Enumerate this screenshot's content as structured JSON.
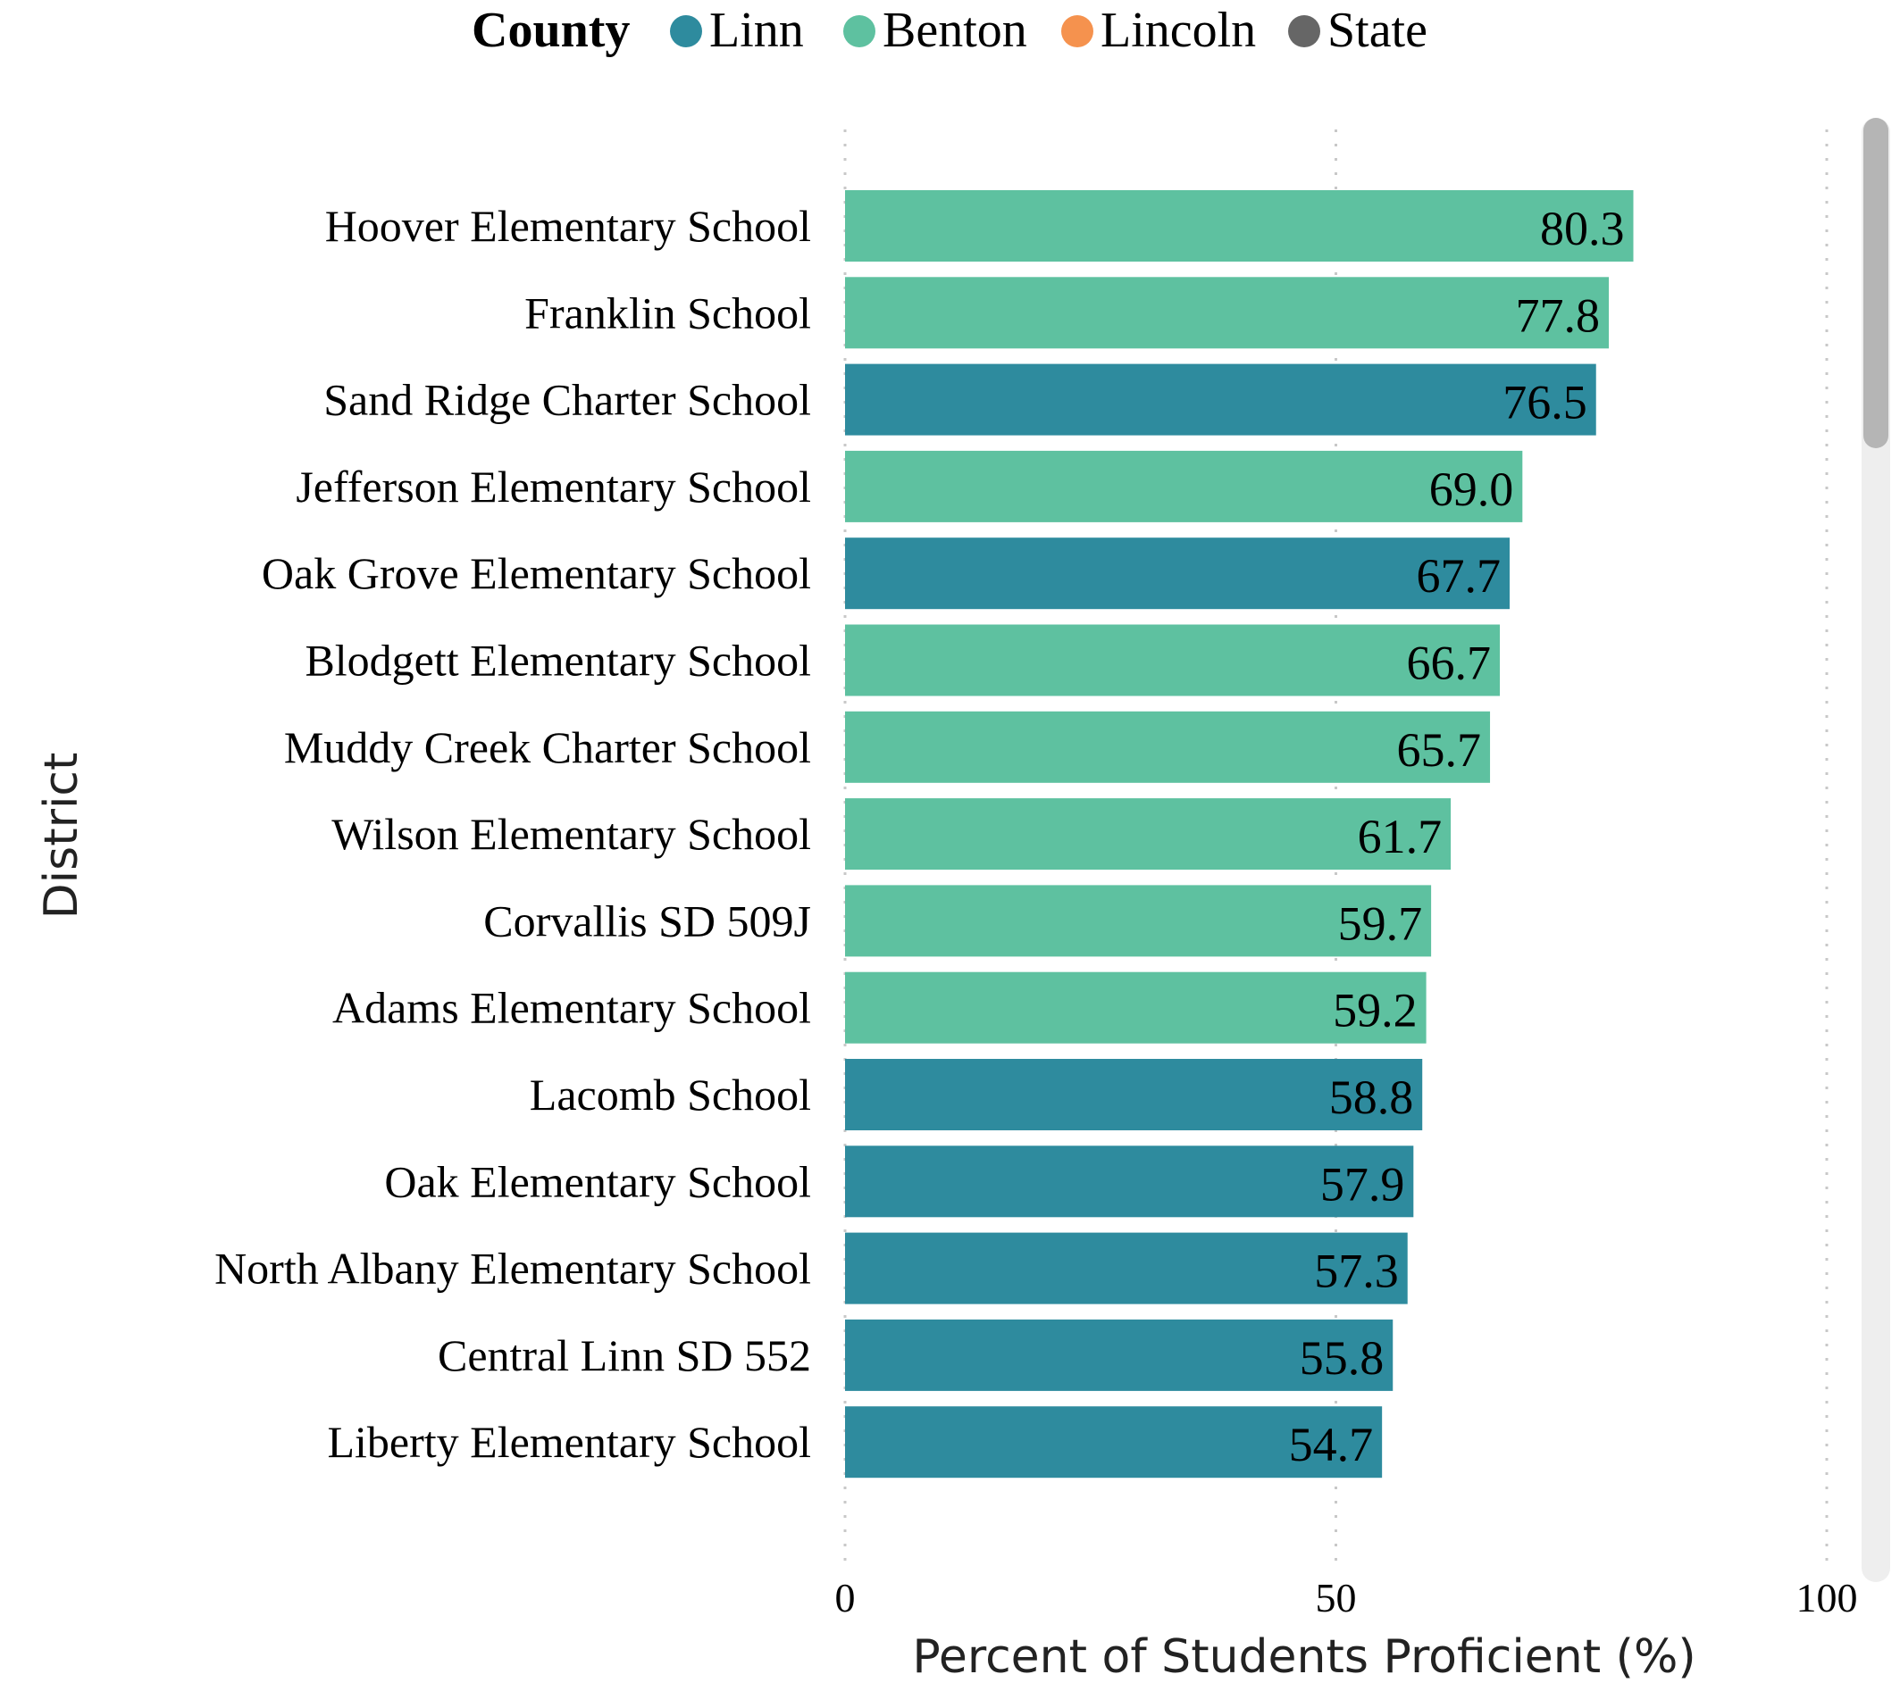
{
  "chart_data": {
    "type": "bar",
    "orientation": "horizontal",
    "legend": {
      "title": "County",
      "placement": "top-center",
      "items": [
        {
          "label": "Linn",
          "color": "#2e8b9e"
        },
        {
          "label": "Benton",
          "color": "#5ec1a0"
        },
        {
          "label": "Lincoln",
          "color": "#f5924e"
        },
        {
          "label": "State",
          "color": "#666666"
        }
      ]
    },
    "categories": [
      "Hoover Elementary School",
      "Franklin School",
      "Sand Ridge Charter School",
      "Jefferson Elementary School",
      "Oak Grove Elementary School",
      "Blodgett Elementary School",
      "Muddy Creek Charter School",
      "Wilson Elementary School",
      "Corvallis SD 509J",
      "Adams Elementary School",
      "Lacomb School",
      "Oak Elementary School",
      "North Albany Elementary School",
      "Central Linn SD 552",
      "Liberty Elementary School"
    ],
    "values": [
      80.3,
      77.8,
      76.5,
      69.0,
      67.7,
      66.7,
      65.7,
      61.7,
      59.7,
      59.2,
      58.8,
      57.9,
      57.3,
      55.8,
      54.7
    ],
    "value_labels": [
      "80.3",
      "77.8",
      "76.5",
      "69.0",
      "67.7",
      "66.7",
      "65.7",
      "61.7",
      "59.7",
      "59.2",
      "58.8",
      "57.9",
      "57.3",
      "55.8",
      "54.7"
    ],
    "county": [
      "Benton",
      "Benton",
      "Linn",
      "Benton",
      "Linn",
      "Benton",
      "Benton",
      "Benton",
      "Benton",
      "Benton",
      "Linn",
      "Linn",
      "Linn",
      "Linn",
      "Linn"
    ],
    "xlabel": "Percent of Students Proficient (%)",
    "ylabel": "District",
    "xlim": [
      0,
      100
    ],
    "xticks": [
      "0",
      "50",
      "100"
    ],
    "grid": "vertical dotted"
  },
  "scrollbar": {
    "visible": true
  }
}
